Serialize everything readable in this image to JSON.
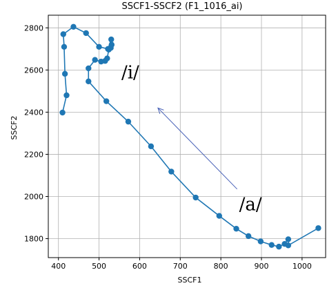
{
  "chart_data": {
    "type": "line",
    "title": "SSCF1-SSCF2 (F1_1016_ai)",
    "xlabel": "SSCF1",
    "ylabel": "SSCF2",
    "xlim": [
      375,
      1058
    ],
    "ylim": [
      1710,
      2860
    ],
    "xticks": [
      400,
      500,
      600,
      700,
      800,
      900,
      1000
    ],
    "yticks": [
      1800,
      2000,
      2200,
      2400,
      2600,
      2800
    ],
    "grid": true,
    "series": [
      {
        "color": "#1f77b4",
        "marker": "circle",
        "x": [
          1040,
          966,
          966,
          957,
          943,
          925,
          898,
          868,
          838,
          796,
          738,
          678,
          628,
          572,
          518,
          474,
          474,
          490,
          505,
          515,
          520,
          524,
          529,
          531,
          530,
          522,
          500,
          468,
          437,
          412,
          414,
          416,
          420,
          410
        ],
        "y": [
          1850,
          1768,
          1797,
          1775,
          1762,
          1770,
          1787,
          1812,
          1847,
          1908,
          1995,
          2118,
          2238,
          2355,
          2452,
          2546,
          2608,
          2648,
          2640,
          2643,
          2655,
          2697,
          2705,
          2720,
          2745,
          2700,
          2710,
          2775,
          2805,
          2770,
          2710,
          2582,
          2480,
          2398
        ]
      }
    ],
    "annotations": [
      {
        "text": "/i/",
        "x": 555,
        "y": 2560
      },
      {
        "text": "/a/",
        "x": 845,
        "y": 1935
      }
    ],
    "arrow": {
      "from": [
        840,
        2035
      ],
      "to": [
        645,
        2420
      ],
      "color": "#4a63b8"
    }
  }
}
